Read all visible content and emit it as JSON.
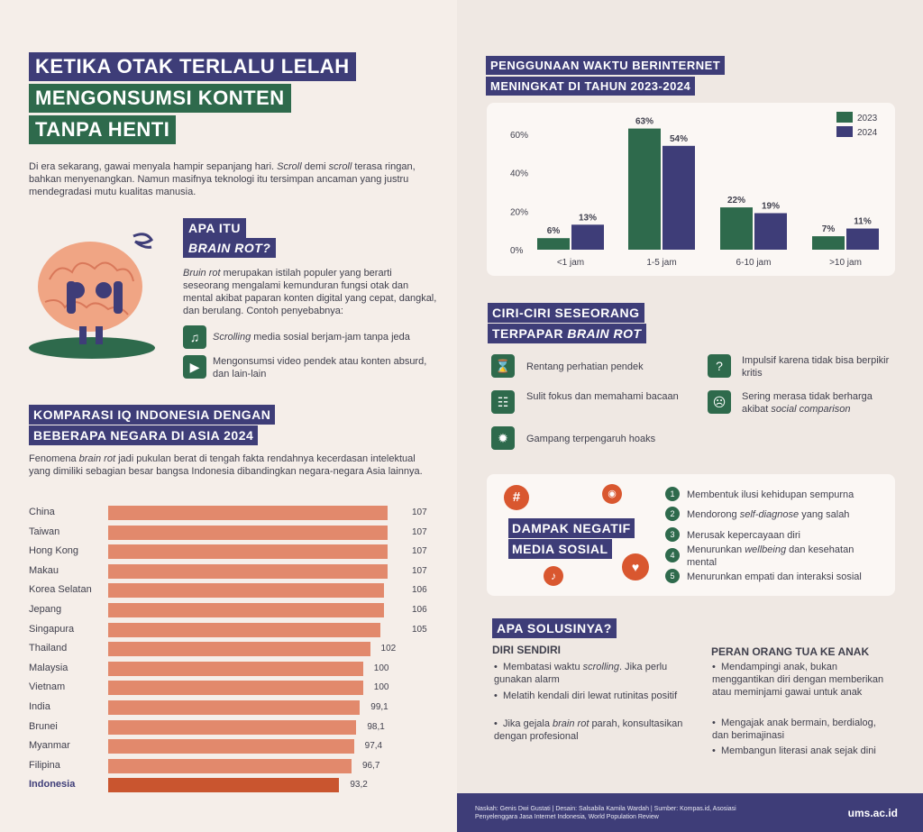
{
  "title": {
    "line1": "KETIKA OTAK TERLALU LELAH",
    "line2": "MENGONSUMSI KONTEN",
    "line3": "TANPA HENTI"
  },
  "intro": {
    "p1": "Di era sekarang, gawai menyala hampir sepanjang hari.",
    "scroll1": "Scroll",
    "p2": "demi",
    "scroll2": "scroll",
    "p3": "terasa ringan, bahkan menyenangkan. Namun masifnya teknologi itu tersimpan ancaman yang justru mendegradasi mutu kualitas manusia."
  },
  "brainrot": {
    "tag1": "APA ITU",
    "tag2": "BRAIN ROT?",
    "def_em": "Bruin rot",
    "def": "merupakan istilah populer yang berarti seseorang mengalami kemunduran fungsi otak dan mental akibat paparan konten digital yang cepat, dangkal, dan berulang. Contoh penyebabnya:",
    "cause1_em": "Scrolling",
    "cause1": "media sosial berjam-jam tanpa jeda",
    "cause2": "Mengonsumsi video pendek atau konten absurd, dan lain-lain"
  },
  "iq": {
    "tag1": "KOMPARASI IQ INDONESIA DENGAN",
    "tag2": "BEBERAPA NEGARA DI ASIA 2024",
    "desc_a": "Fenomena",
    "desc_em": "brain rot",
    "desc_b": "jadi pukulan berat di tengah fakta rendahnya kecerdasan intelektual yang dimiliki sebagian besar bangsa Indonesia dibandingkan negara-negara Asia lainnya.",
    "rows": [
      {
        "name": "China",
        "val": "107",
        "v": 107
      },
      {
        "name": "Taiwan",
        "val": "107",
        "v": 107
      },
      {
        "name": "Hong Kong",
        "val": "107",
        "v": 107
      },
      {
        "name": "Makau",
        "val": "107",
        "v": 107
      },
      {
        "name": "Korea Selatan",
        "val": "106",
        "v": 106
      },
      {
        "name": "Jepang",
        "val": "106",
        "v": 106
      },
      {
        "name": "Singapura",
        "val": "105",
        "v": 105
      },
      {
        "name": "Thailand",
        "val": "102",
        "v": 102
      },
      {
        "name": "Malaysia",
        "val": "100",
        "v": 100
      },
      {
        "name": "Vietnam",
        "val": "100",
        "v": 100
      },
      {
        "name": "India",
        "val": "99,1",
        "v": 99.1
      },
      {
        "name": "Brunei",
        "val": "98,1",
        "v": 98.1
      },
      {
        "name": "Myanmar",
        "val": "97,4",
        "v": 97.4
      },
      {
        "name": "Filipina",
        "val": "96,7",
        "v": 96.7
      },
      {
        "name": "Indonesia",
        "val": "93,2",
        "v": 93.2
      }
    ]
  },
  "internet": {
    "tag1": "PENGGUNAAN WAKTU BERINTERNET",
    "tag2": "MENINGKAT DI TAHUN 2023-2024"
  },
  "chart_data": {
    "type": "bar",
    "title": "PENGGUNAAN WAKTU BERINTERNET MENINGKAT DI TAHUN 2023-2024",
    "categories": [
      "<1 jam",
      "1-5 jam",
      "6-10 jam",
      ">10 jam"
    ],
    "series": [
      {
        "name": "2023",
        "values": [
          6,
          63,
          22,
          7
        ],
        "labels": [
          "6%",
          "63%",
          "22%",
          "7%"
        ],
        "color": "#2e6a4c"
      },
      {
        "name": "2024",
        "values": [
          13,
          54,
          19,
          11
        ],
        "labels": [
          "13%",
          "54%",
          "19%",
          "11%"
        ],
        "color": "#3e3d78"
      }
    ],
    "yticks": [
      "0%",
      "20%",
      "40%",
      "60%"
    ],
    "ylim": [
      0,
      70
    ],
    "legend": "top-right"
  },
  "ciri": {
    "tag1": "CIRI-CIRI SESEORANG",
    "tag2a": "TERPAPAR",
    "tag2b": "BRAIN ROT",
    "items": [
      "Rentang perhatian pendek",
      "Sulit fokus dan memahami bacaan",
      "Gampang terpengaruh hoaks",
      "Impulsif karena tidak bisa berpikir kritis"
    ],
    "item5a": "Sering merasa tidak berharga akibat",
    "item5b": "social comparison"
  },
  "dampak": {
    "tag1": "DAMPAK NEGATIF",
    "tag2": "MEDIA SOSIAL",
    "n": [
      "1",
      "2",
      "3",
      "4",
      "5"
    ],
    "i1": "Membentuk ilusi kehidupan sempurna",
    "i2a": "Mendorong",
    "i2b": "self-diagnose",
    "i2c": "yang salah",
    "i3": "Merusak kepercayaan diri",
    "i4a": "Menurunkan",
    "i4b": "wellbeing",
    "i4c": "dan kesehatan mental",
    "i5": "Menurunkan empati dan interaksi sosial"
  },
  "solusi": {
    "tag": "APA SOLUSINYA?",
    "h1": "DIRI SENDIRI",
    "a1a": "Membatasi waktu",
    "a1b": "scrolling",
    "a1c": ". Jika perlu gunakan alarm",
    "a2": "Melatih kendali diri lewat rutinitas positif",
    "a3a": "Jika gejala",
    "a3b": "brain rot",
    "a3c": "parah, konsultasikan dengan profesional",
    "h2": "PERAN ORANG TUA KE ANAK",
    "b1": "Mendampingi anak, bukan menggantikan diri dengan memberikan atau meminjami gawai untuk anak",
    "b2": "Mengajak anak bermain, berdialog, dan berimajinasi",
    "b3": "Membangun literasi anak sejak dini"
  },
  "footer": {
    "credit": "Naskah: Genis Dwi Gustati | Desain: Salsabila Kamila Wardah | Sumber: Kompas.id, Asosiasi Penyelenggara Jasa Internet Indonesia, World Population Review",
    "site": "ums.ac.id"
  },
  "colors": {
    "purple": "#3e3d78",
    "green": "#2e6a4c",
    "orange": "#e2896c",
    "indonesia": "#c9552f"
  }
}
